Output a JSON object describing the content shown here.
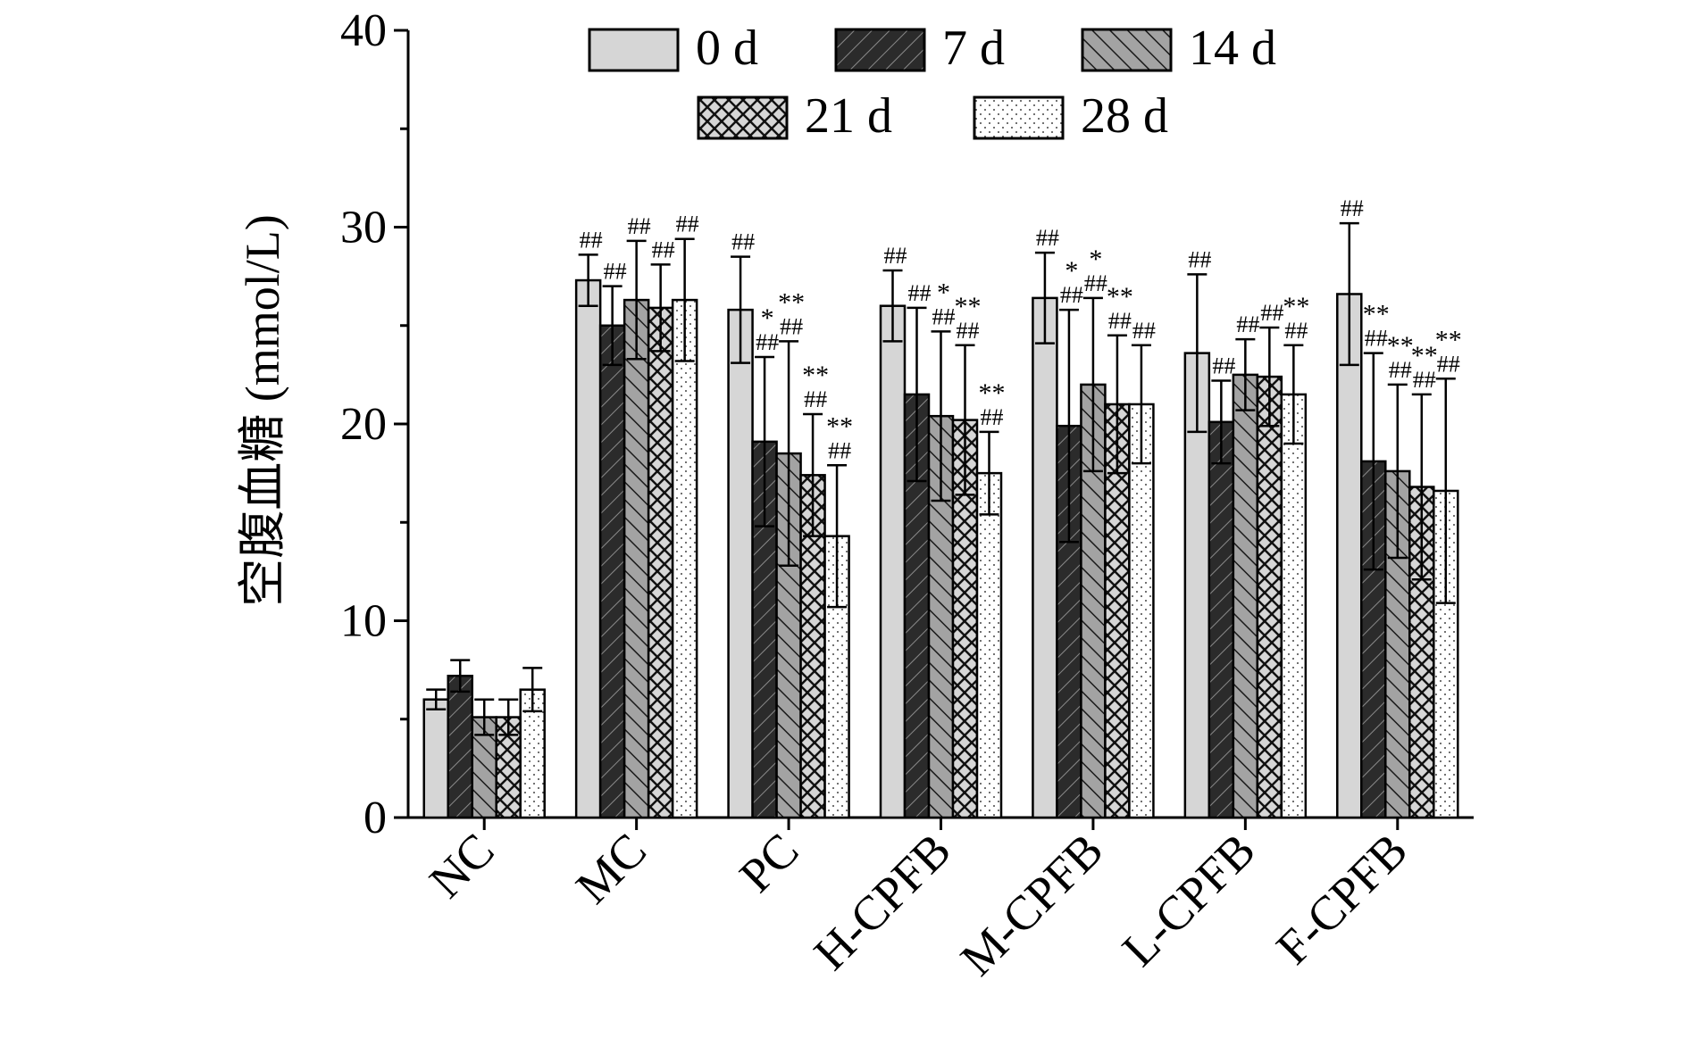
{
  "chart_data": {
    "type": "bar",
    "ylabel": "空腹血糖 (mmol/L)",
    "ylim": [
      0,
      40
    ],
    "yticks": [
      0,
      10,
      20,
      30,
      40
    ],
    "categories": [
      "NC",
      "MC",
      "PC",
      "H-CPFB",
      "M-CPFB",
      "L-CPFB",
      "F-CPFB"
    ],
    "legend_position": "top",
    "series": [
      {
        "name": "0 d",
        "fill": "#d6d6d6",
        "pattern": "solid-light",
        "values": [
          6.0,
          27.3,
          25.8,
          26.0,
          26.4,
          23.6,
          26.6
        ],
        "errors": [
          0.5,
          1.3,
          2.7,
          1.8,
          2.3,
          4.0,
          3.6
        ],
        "annotations": [
          [],
          [
            "##"
          ],
          [
            "##"
          ],
          [
            "##"
          ],
          [
            "##"
          ],
          [
            "##"
          ],
          [
            "##"
          ]
        ]
      },
      {
        "name": "7 d",
        "fill": "#2b2b2b",
        "pattern": "diagonal-dark",
        "values": [
          7.2,
          25.0,
          19.1,
          21.5,
          19.9,
          20.1,
          18.1
        ],
        "errors": [
          0.8,
          2.0,
          4.3,
          4.4,
          5.9,
          2.1,
          5.5
        ],
        "annotations": [
          [],
          [
            "##"
          ],
          [
            "*",
            "##"
          ],
          [
            "##"
          ],
          [
            "*",
            "##"
          ],
          [
            "##"
          ],
          [
            "**",
            "##"
          ]
        ]
      },
      {
        "name": "14 d",
        "fill": "#a3a3a3",
        "pattern": "backdiagonal-grey",
        "values": [
          5.1,
          26.3,
          18.5,
          20.4,
          22.0,
          22.5,
          17.6
        ],
        "errors": [
          0.9,
          3.0,
          5.7,
          4.3,
          4.4,
          1.8,
          4.4
        ],
        "annotations": [
          [],
          [
            "##"
          ],
          [
            "**",
            "##"
          ],
          [
            "*",
            "##"
          ],
          [
            "*",
            "##"
          ],
          [
            "##"
          ],
          [
            "**",
            "##"
          ]
        ]
      },
      {
        "name": "21 d",
        "fill": "#d6d6d6",
        "pattern": "crosshatch-light",
        "values": [
          5.1,
          25.9,
          17.4,
          20.2,
          21.0,
          22.4,
          16.8
        ],
        "errors": [
          0.9,
          2.2,
          3.1,
          3.8,
          3.5,
          2.5,
          4.7
        ],
        "annotations": [
          [],
          [
            "##"
          ],
          [
            "**",
            "##"
          ],
          [
            "**",
            "##"
          ],
          [
            "**",
            "##"
          ],
          [
            "##"
          ],
          [
            "**",
            "##"
          ]
        ]
      },
      {
        "name": "28 d",
        "fill": "#ffffff",
        "pattern": "dots-white",
        "values": [
          6.5,
          26.3,
          14.3,
          17.5,
          21.0,
          21.5,
          16.6
        ],
        "errors": [
          1.1,
          3.1,
          3.6,
          2.1,
          3.0,
          2.5,
          5.7
        ],
        "annotations": [
          [],
          [
            "##"
          ],
          [
            "**",
            "##"
          ],
          [
            "**",
            "##"
          ],
          [
            "##"
          ],
          [
            "**",
            "##"
          ],
          [
            "**",
            "##"
          ]
        ]
      }
    ]
  }
}
